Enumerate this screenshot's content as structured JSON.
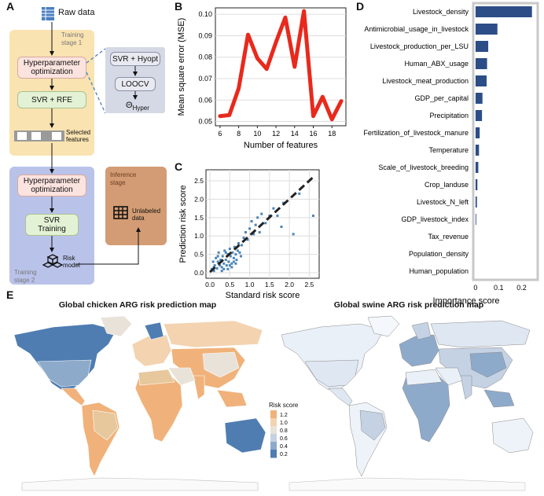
{
  "panels": {
    "A": "A",
    "B": "B",
    "C": "C",
    "D": "D",
    "E": "E"
  },
  "panelA": {
    "raw_data": "Raw data",
    "training_stage1": "Training\nstage 1",
    "hyperparam_opt_1": "Hyperparameter\noptimization",
    "svr_rfe": "SVR + RFE",
    "selected_features": "Selected\nfeatures",
    "svr_hyopt": "SVR + Hyopt",
    "loocv": "LOOCV",
    "theta_hyper": "Θ",
    "theta_sub": "Hyper",
    "hyperparam_opt_2": "Hyperparameter\noptimization",
    "svr_training": "SVR\nTraining",
    "risk_model": "Risk\nmodel",
    "training_stage2": "Training\nstage 2",
    "inference_stage": "Inference\nstage",
    "unlabeled_data": "Unlabeled\ndata",
    "colors": {
      "stage1": "#f9e3b1",
      "stage2": "#b9c3ea",
      "hyper_box": "#fbe3df",
      "svr_box": "#e3f1d4",
      "inset": "#d5d9e5",
      "inference": "#d39c74",
      "blue_icon": "#4a7fc1"
    }
  },
  "chart_data": [
    {
      "type": "line",
      "panel": "B",
      "xlabel": "Number of features",
      "ylabel": "Mean square error (MSE)",
      "x": [
        6,
        7,
        8,
        9,
        10,
        11,
        12,
        13,
        14,
        15,
        16,
        17,
        18,
        19
      ],
      "y": [
        0.0525,
        0.053,
        0.0655,
        0.0905,
        0.0795,
        0.0745,
        0.087,
        0.0985,
        0.0755,
        0.1015,
        0.0525,
        0.0615,
        0.051,
        0.0595
      ],
      "xticks": [
        6,
        8,
        10,
        12,
        14,
        16,
        18
      ],
      "yticks": [
        0.05,
        0.06,
        0.07,
        0.08,
        0.09,
        0.1
      ],
      "ytick_labels": [
        "0.05",
        "0.06",
        "0.07",
        "0.08",
        "0.09",
        "0.10"
      ],
      "xlim": [
        5.5,
        19.5
      ],
      "ylim": [
        0.048,
        0.103
      ],
      "grid": true,
      "color": "#e8291c"
    },
    {
      "type": "scatter",
      "panel": "C",
      "xlabel": "Standard risk score",
      "ylabel": "Prediction risk score",
      "xticks": [
        0,
        0.5,
        1.0,
        1.5,
        2.0,
        2.5
      ],
      "xtick_labels": [
        "0.0",
        "0.5",
        "1.0",
        "1.5",
        "2.0",
        "2.5"
      ],
      "yticks": [
        0.0,
        0.5,
        1.0,
        1.5,
        2.0,
        2.5
      ],
      "ytick_labels": [
        "0.0",
        "0.5",
        "1.0",
        "1.5",
        "2.0",
        "2.5"
      ],
      "xlim": [
        -0.1,
        2.75
      ],
      "ylim": [
        -0.15,
        2.8
      ],
      "grid": true,
      "color": "#4a84b8",
      "fit_line": {
        "x": [
          0,
          2.65
        ],
        "y": [
          0.02,
          2.65
        ]
      },
      "points": [
        [
          0.05,
          0.1
        ],
        [
          0.08,
          0.3
        ],
        [
          0.1,
          0.05
        ],
        [
          0.12,
          0.2
        ],
        [
          0.15,
          0.4
        ],
        [
          0.18,
          0.12
        ],
        [
          0.2,
          0.3
        ],
        [
          0.22,
          0.55
        ],
        [
          0.25,
          0.2
        ],
        [
          0.27,
          0.35
        ],
        [
          0.3,
          0.15
        ],
        [
          0.32,
          0.45
        ],
        [
          0.35,
          0.25
        ],
        [
          0.37,
          0.6
        ],
        [
          0.4,
          0.35
        ],
        [
          0.42,
          0.2
        ],
        [
          0.45,
          0.5
        ],
        [
          0.47,
          0.3
        ],
        [
          0.5,
          0.65
        ],
        [
          0.52,
          0.45
        ],
        [
          0.55,
          0.25
        ],
        [
          0.57,
          0.55
        ],
        [
          0.6,
          0.4
        ],
        [
          0.62,
          0.7
        ],
        [
          0.65,
          0.5
        ],
        [
          0.67,
          0.35
        ],
        [
          0.7,
          0.6
        ],
        [
          0.72,
          0.8
        ],
        [
          0.75,
          0.55
        ],
        [
          0.78,
          0.45
        ],
        [
          0.8,
          0.75
        ],
        [
          0.85,
          0.95
        ],
        [
          0.9,
          1.1
        ],
        [
          0.95,
          0.9
        ],
        [
          1.0,
          1.2
        ],
        [
          1.05,
          1.4
        ],
        [
          1.1,
          1.05
        ],
        [
          1.15,
          1.3
        ],
        [
          1.2,
          1.5
        ],
        [
          1.25,
          1.1
        ],
        [
          1.3,
          1.6
        ],
        [
          1.4,
          1.35
        ],
        [
          1.5,
          1.55
        ],
        [
          1.6,
          1.75
        ],
        [
          1.7,
          1.55
        ],
        [
          1.8,
          1.25
        ],
        [
          1.85,
          1.9
        ],
        [
          2.1,
          1.05
        ],
        [
          2.25,
          2.15
        ],
        [
          2.6,
          1.55
        ],
        [
          0.3,
          0.05
        ],
        [
          0.45,
          0.1
        ],
        [
          0.55,
          0.15
        ],
        [
          0.65,
          0.25
        ],
        [
          0.2,
          0.45
        ],
        [
          0.1,
          0.15
        ],
        [
          0.35,
          0.1
        ],
        [
          0.5,
          0.2
        ],
        [
          0.6,
          0.3
        ],
        [
          0.4,
          0.55
        ]
      ]
    },
    {
      "type": "bar",
      "panel": "D",
      "orientation": "horizontal",
      "xlabel": "Importance score",
      "categories": [
        "Livestock_density",
        "Antimicrobial_usage_in_livestock",
        "Livestock_production_per_LSU",
        "Human_ABX_usage",
        "Livestock_meat_production",
        "GDP_per_capital",
        "Precipitation",
        "Fertilization_of_livestock_manure",
        "Temperature",
        "Scale_of_livestock_breeding",
        "Crop_landuse",
        "Livestock_N_left",
        "GDP_livestock_index",
        "Tax_revenue",
        "Population_density",
        "Human_population"
      ],
      "values": [
        0.245,
        0.095,
        0.055,
        0.05,
        0.048,
        0.03,
        0.028,
        0.018,
        0.015,
        0.012,
        0.008,
        0.006,
        0.003,
        0,
        0,
        0
      ],
      "xticks": [
        0,
        0.1,
        0.2
      ],
      "xtick_labels": [
        "0",
        "0.1",
        "0.2"
      ],
      "xlim": [
        -0.01,
        0.27
      ],
      "color": "#2c4d86"
    }
  ],
  "panelE": {
    "title_left": "Global chicken ARG risk prediction map",
    "title_right": "Global swine ARG risk prediction map",
    "legend_title": "Risk score",
    "legend_ticks": [
      "1.2",
      "1.0",
      "0.8",
      "0.6",
      "0.4",
      "0.2"
    ],
    "legend_colors": [
      "#f0b27a",
      "#f3d3b0",
      "#e9e2d8",
      "#c4d2e3",
      "#8eaacb",
      "#4f7db1"
    ]
  }
}
